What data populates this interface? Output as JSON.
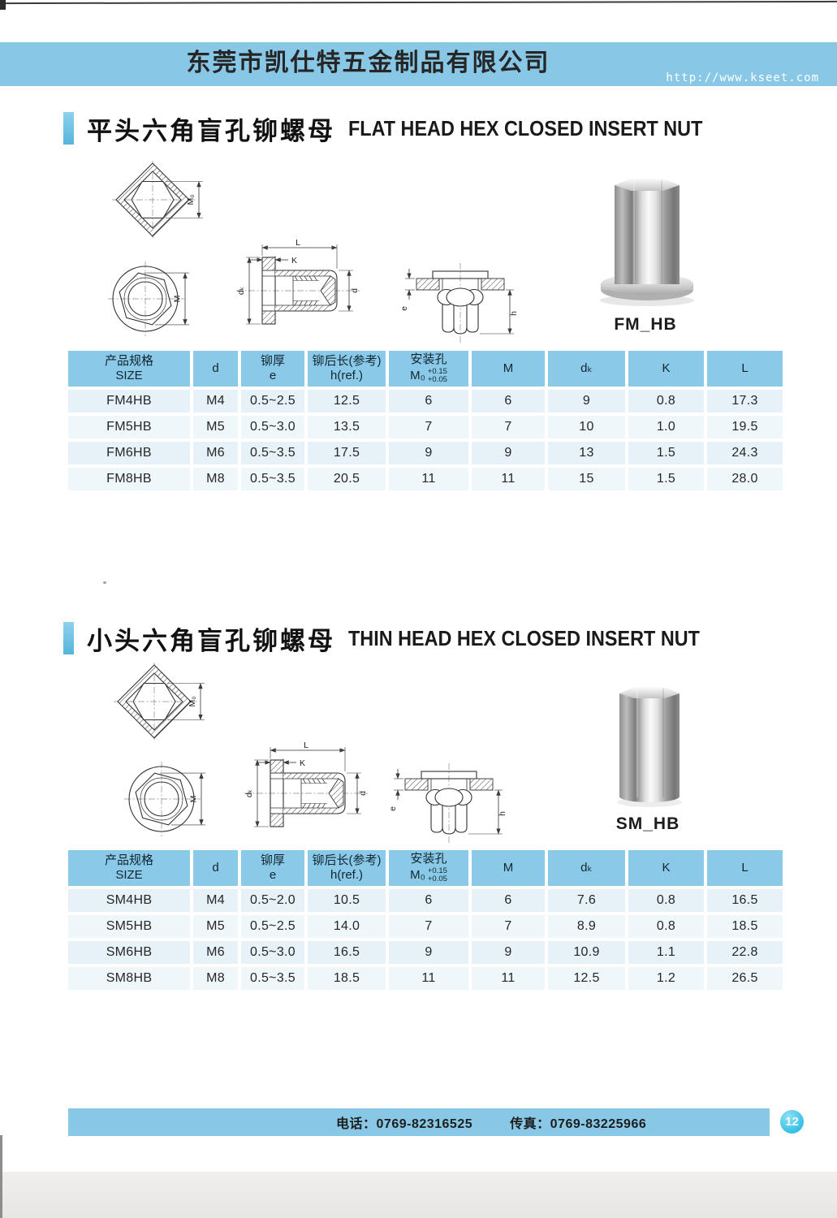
{
  "header": {
    "company": "东莞市凯仕特五金制品有限公司",
    "url": "http://www.kseet.com"
  },
  "colors": {
    "banner": "#88c8e6",
    "table_header": "#8acae8",
    "row_a": "#e7f2f8",
    "row_b": "#f0f7fa",
    "accent": "#55b5dc",
    "circle": "#38c0e6"
  },
  "drawing_labels": {
    "m0": "M₀",
    "m": "M",
    "l": "L",
    "k": "K",
    "dk": "dₖ",
    "d": "d",
    "e": "e",
    "h": "h"
  },
  "table_headers": [
    {
      "top": "产品规格",
      "bottom": "SIZE"
    },
    {
      "top": "d"
    },
    {
      "top": "铆厚",
      "bottom": "e"
    },
    {
      "top": "铆后长(参考)",
      "bottom": "h(ref.)"
    },
    {
      "top": "安装孔",
      "bottom": "M₀",
      "tol_top": "+0.15",
      "tol_bottom": "+0.05"
    },
    {
      "top": "M"
    },
    {
      "top": "dₖ"
    },
    {
      "top": "K"
    },
    {
      "top": "L"
    }
  ],
  "sections": [
    {
      "title_cn": "平头六角盲孔铆螺母",
      "title_en": "FLAT HEAD HEX CLOSED INSERT NUT",
      "product_label": "FM_HB",
      "table_rows": [
        [
          "FM4HB",
          "M4",
          "0.5~2.5",
          "12.5",
          "6",
          "6",
          "9",
          "0.8",
          "17.3"
        ],
        [
          "FM5HB",
          "M5",
          "0.5~3.0",
          "13.5",
          "7",
          "7",
          "10",
          "1.0",
          "19.5"
        ],
        [
          "FM6HB",
          "M6",
          "0.5~3.5",
          "17.5",
          "9",
          "9",
          "13",
          "1.5",
          "24.3"
        ],
        [
          "FM8HB",
          "M8",
          "0.5~3.5",
          "20.5",
          "11",
          "11",
          "15",
          "1.5",
          "28.0"
        ]
      ]
    },
    {
      "title_cn": "小头六角盲孔铆螺母",
      "title_en": "THIN HEAD HEX CLOSED INSERT NUT",
      "product_label": "SM_HB",
      "table_rows": [
        [
          "SM4HB",
          "M4",
          "0.5~2.0",
          "10.5",
          "6",
          "6",
          "7.6",
          "0.8",
          "16.5"
        ],
        [
          "SM5HB",
          "M5",
          "0.5~2.5",
          "14.0",
          "7",
          "7",
          "8.9",
          "0.8",
          "18.5"
        ],
        [
          "SM6HB",
          "M6",
          "0.5~3.0",
          "16.5",
          "9",
          "9",
          "10.9",
          "1.1",
          "22.8"
        ],
        [
          "SM8HB",
          "M8",
          "0.5~3.5",
          "18.5",
          "11",
          "11",
          "12.5",
          "1.2",
          "26.5"
        ]
      ]
    }
  ],
  "footer": {
    "tel_label": "电话：",
    "tel": "0769-82316525",
    "fax_label": "传真：",
    "fax": "0769-83225966",
    "page_number": "12"
  }
}
